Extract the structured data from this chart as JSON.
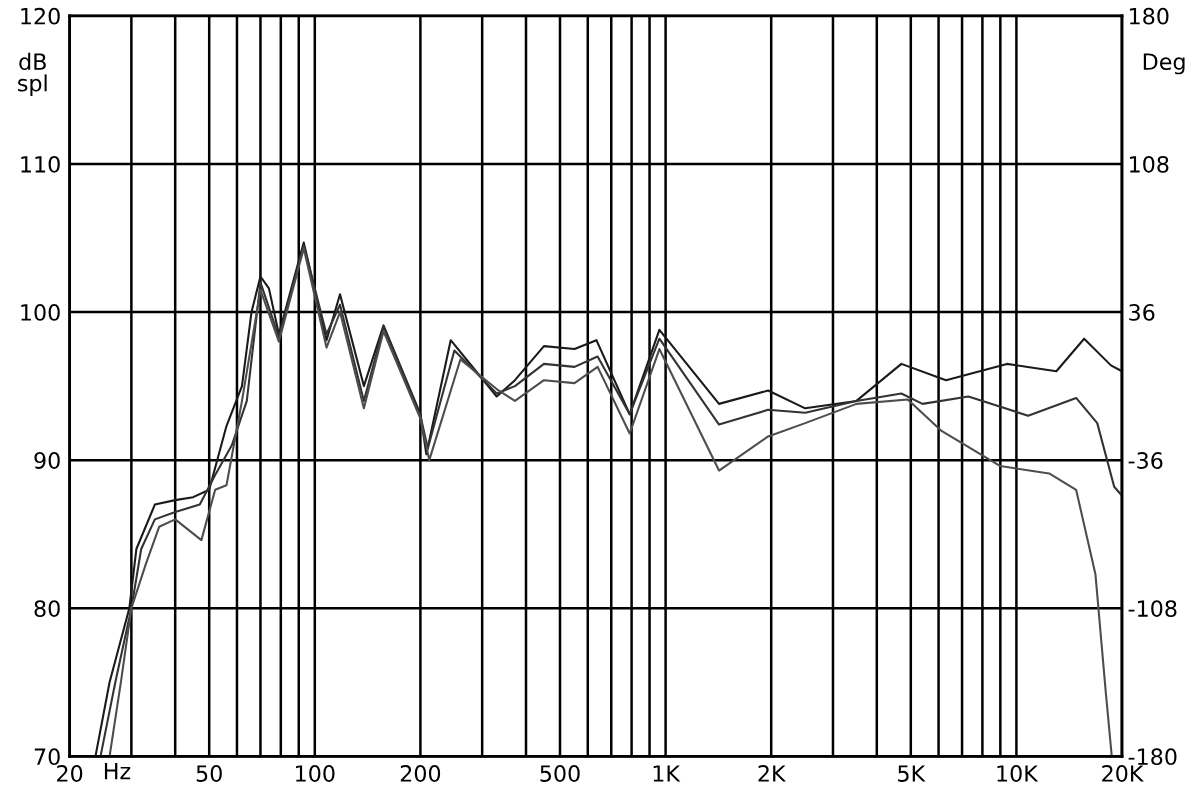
{
  "chart_data": {
    "type": "line",
    "xlabel": "Hz",
    "ylabel": "dB\nspl",
    "y2label": "Deg",
    "log": "x",
    "grid": true,
    "marker": "none",
    "line_style": "solid",
    "xlim": [
      20,
      20000
    ],
    "ylim": [
      70,
      120
    ],
    "y2lim": [
      -180,
      180
    ],
    "xticks": [
      20,
      {
        "value": 30,
        "label": null
      },
      {
        "value": 40,
        "label": null
      },
      50,
      {
        "value": 60,
        "label": null
      },
      {
        "value": 70,
        "label": null
      },
      {
        "value": 80,
        "label": null
      },
      {
        "value": 90,
        "label": null
      },
      100,
      200,
      {
        "value": 300,
        "label": null
      },
      {
        "value": 400,
        "label": null
      },
      500,
      {
        "value": 600,
        "label": null
      },
      {
        "value": 700,
        "label": null
      },
      {
        "value": 800,
        "label": null
      },
      {
        "value": 900,
        "label": null
      },
      {
        "value": 1000,
        "label": "1K"
      },
      {
        "value": 2000,
        "label": "2K"
      },
      {
        "value": 3000,
        "label": null
      },
      {
        "value": 4000,
        "label": null
      },
      {
        "value": 5000,
        "label": "5K"
      },
      {
        "value": 6000,
        "label": null
      },
      {
        "value": 7000,
        "label": null
      },
      {
        "value": 8000,
        "label": null
      },
      {
        "value": 9000,
        "label": null
      },
      {
        "value": 10000,
        "label": "10K"
      },
      {
        "value": 20000,
        "label": "20K"
      }
    ],
    "yticks": [
      70,
      80,
      90,
      100,
      110,
      120
    ],
    "y2ticks": [
      -180,
      -108,
      -36,
      36,
      108,
      180
    ],
    "series": [
      {
        "color": "#1a1a1a",
        "x": [
          23.7,
          26,
          29.6,
          31,
          35,
          40,
          45,
          50,
          56,
          62,
          66,
          70,
          74,
          79,
          93,
          108,
          118,
          138,
          157,
          200,
          208,
          244,
          330,
          372,
          450,
          550,
          635,
          790,
          960,
          1420,
          1960,
          2500,
          3500,
          4700,
          6300,
          9400,
          13000,
          15600,
          18600,
          20000
        ],
        "values": [
          70,
          75,
          80,
          84,
          87,
          87.3,
          87.5,
          88,
          92.3,
          95,
          100,
          102.4,
          101.6,
          98.5,
          104.7,
          98.1,
          101.2,
          95,
          99.1,
          93.1,
          90.4,
          98.1,
          94.3,
          95.4,
          97.7,
          97.5,
          98.1,
          93.1,
          98.8,
          93.8,
          94.7,
          93.5,
          94,
          96.5,
          95.4,
          96.5,
          96,
          98.2,
          96.4,
          96
        ]
      },
      {
        "color": "#333333",
        "x": [
          24.5,
          27,
          30,
          32,
          35,
          40,
          47,
          52,
          58,
          64,
          70,
          79,
          93,
          108,
          118,
          138,
          157,
          200,
          210,
          250,
          330,
          372,
          450,
          550,
          640,
          790,
          960,
          1420,
          1960,
          2500,
          3500,
          4700,
          5400,
          7300,
          10800,
          14800,
          17000,
          19000,
          20000
        ],
        "values": [
          70,
          75,
          80,
          84,
          86,
          86.5,
          87,
          89,
          91,
          94,
          102,
          98.3,
          104.5,
          98.5,
          100.5,
          94,
          99,
          93,
          90.8,
          97.4,
          94.5,
          95,
          96.5,
          96.3,
          97,
          93.1,
          98.2,
          92.4,
          93.4,
          93.2,
          94,
          94.5,
          93.8,
          94.3,
          93,
          94.2,
          92.5,
          88.2,
          87.6
        ]
      },
      {
        "color": "#4d4d4d",
        "x": [
          26,
          28,
          30,
          33,
          36,
          40,
          47.5,
          52,
          56,
          62,
          70,
          79,
          93,
          108,
          118,
          138,
          157,
          200,
          212,
          260,
          330,
          372,
          450,
          550,
          640,
          790,
          960,
          1420,
          1960,
          2500,
          3500,
          4900,
          6100,
          9000,
          12400,
          14800,
          16800,
          18000,
          18700
        ],
        "values": [
          70,
          75,
          80,
          83,
          85.5,
          86,
          84.6,
          88,
          88.3,
          94,
          101.5,
          98,
          104.3,
          97.6,
          100,
          93.5,
          98.7,
          92.8,
          90,
          96.8,
          94.8,
          94,
          95.4,
          95.2,
          96.3,
          91.8,
          97.5,
          89.3,
          91.6,
          92.5,
          93.8,
          94.1,
          92,
          89.6,
          89.1,
          88,
          82.3,
          74.2,
          70
        ]
      }
    ]
  }
}
